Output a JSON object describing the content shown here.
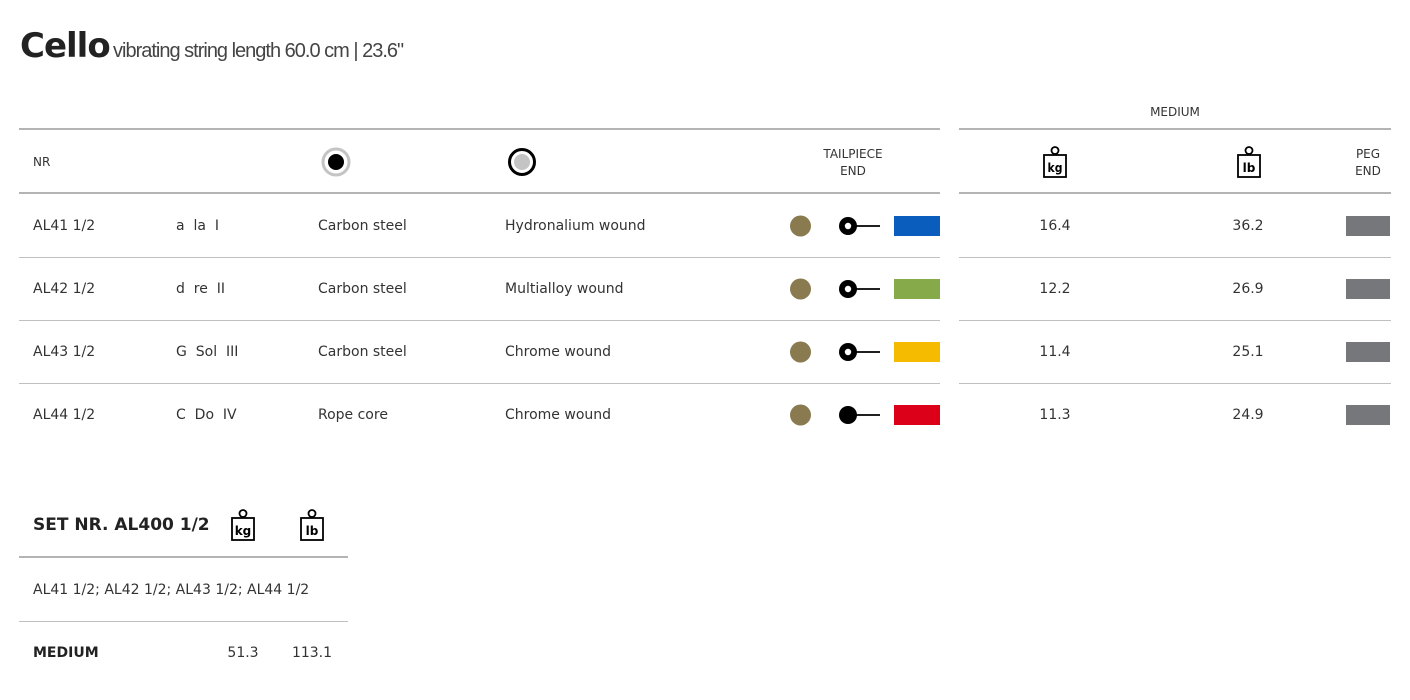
{
  "header": {
    "title": "Cello",
    "subtitle": "vibrating string length 60.0 cm | 23.6\""
  },
  "table": {
    "medium_label": "MEDIUM",
    "col_nr": "NR",
    "core_icon": "core-material-icon",
    "winding_icon": "winding-material-icon",
    "tailpiece_label_1": "TAILPIECE",
    "tailpiece_label_2": "END",
    "kg_label": "kg",
    "lb_label": "lb",
    "peg_label_1": "PEG",
    "peg_label_2": "END",
    "ball_color": "#8a7a50",
    "peg_color": "#75777a",
    "rows": [
      {
        "nr": "AL41 1/2",
        "note": "a  la  I",
        "core": "Carbon steel",
        "winding": "Hydronalium wound",
        "loop": "loop-end",
        "color": "#0a5cbd",
        "kg": "16.4",
        "lb": "36.2"
      },
      {
        "nr": "AL42 1/2",
        "note": "d  re  II",
        "core": "Carbon steel",
        "winding": "Multialloy wound",
        "loop": "loop-end",
        "color": "#86a94a",
        "kg": "12.2",
        "lb": "26.9"
      },
      {
        "nr": "AL43 1/2",
        "note": "G  Sol  III",
        "core": "Carbon steel",
        "winding": "Chrome wound",
        "loop": "loop-end",
        "color": "#f5bb00",
        "kg": "11.4",
        "lb": "25.1"
      },
      {
        "nr": "AL44 1/2",
        "note": "C  Do  IV",
        "core": "Rope core",
        "winding": "Chrome wound",
        "loop": "ball-end",
        "color": "#dd0019",
        "kg": "11.3",
        "lb": "24.9"
      }
    ]
  },
  "set": {
    "title": "SET NR. AL400 1/2",
    "kg_label": "kg",
    "lb_label": "lb",
    "contents": "AL41 1/2; AL42 1/2; AL43 1/2; AL44 1/2",
    "tension_label": "MEDIUM",
    "kg": "51.3",
    "lb": "113.1"
  }
}
